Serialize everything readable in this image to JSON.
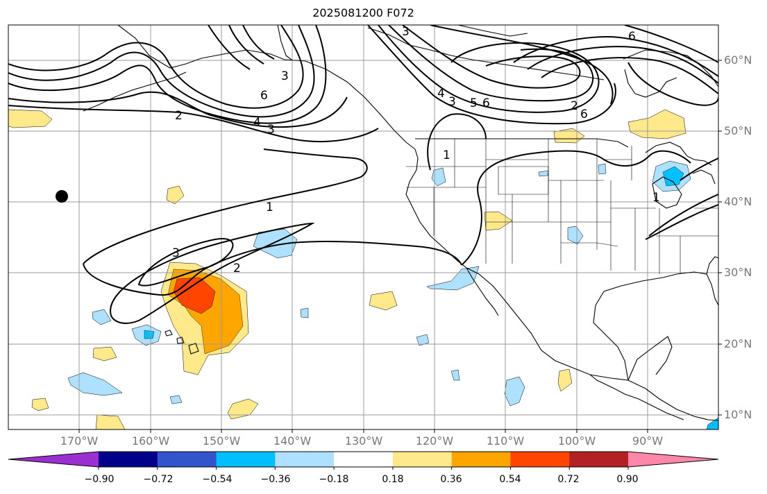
{
  "title": "2025081200 F072",
  "axes": {
    "lat_labels": [
      "60°N",
      "50°N",
      "40°N",
      "30°N",
      "20°N",
      "10°N"
    ],
    "lon_labels": [
      "170°W",
      "160°W",
      "150°W",
      "140°W",
      "130°W",
      "120°W",
      "110°W",
      "100°W",
      "90°W"
    ]
  },
  "contours": {
    "labels": [
      "3",
      "6",
      "3",
      "6",
      "2",
      "4",
      "3",
      "4",
      "3",
      "5",
      "6",
      "2",
      "6",
      "1",
      "1",
      "1",
      "3",
      "2"
    ]
  },
  "colorbar": {
    "ticks": [
      "−0.90",
      "−0.72",
      "−0.54",
      "−0.36",
      "−0.18",
      "0.18",
      "0.36",
      "0.54",
      "0.72",
      "0.90"
    ],
    "colors": [
      "#9b30d0",
      "#00008b",
      "#3355cc",
      "#00bfff",
      "#aee0ff",
      "#ffffff",
      "#ffe98a",
      "#ffa500",
      "#ff4500",
      "#b22222",
      "#ff88aa"
    ]
  }
}
